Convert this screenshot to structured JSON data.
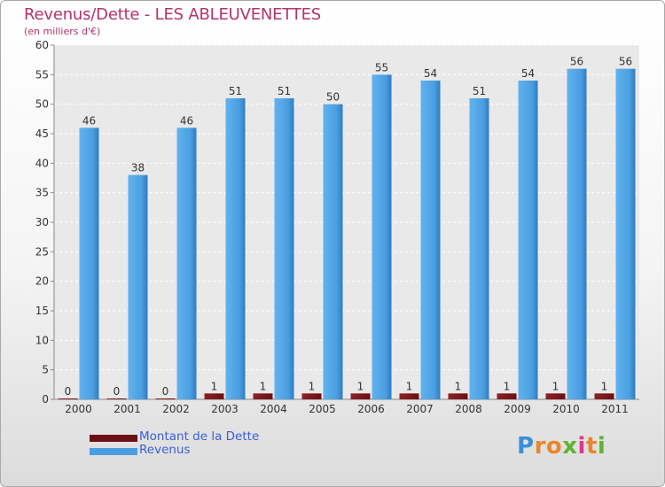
{
  "chart_data": {
    "type": "bar",
    "title": "Revenus/Dette - LES ABLEUVENETTES",
    "subtitle": "(en milliers d'€)",
    "categories": [
      "2000",
      "2001",
      "2002",
      "2003",
      "2004",
      "2005",
      "2006",
      "2007",
      "2008",
      "2009",
      "2010",
      "2011"
    ],
    "series": [
      {
        "name": "Montant de la Dette",
        "values": [
          0,
          0,
          0,
          1,
          1,
          1,
          1,
          1,
          1,
          1,
          1,
          1
        ],
        "color": "#6b0f12"
      },
      {
        "name": "Revenus",
        "values": [
          46,
          38,
          46,
          51,
          51,
          50,
          55,
          54,
          51,
          54,
          56,
          56
        ],
        "color": "#4a9ee0"
      }
    ],
    "ylim": [
      0,
      60
    ],
    "yticks": [
      0,
      5,
      10,
      15,
      20,
      25,
      30,
      35,
      40,
      45,
      50,
      55,
      60
    ],
    "grid": true,
    "legend_position": "bottom-left"
  },
  "brand": {
    "letters": [
      {
        "char": "P",
        "color": "#3a8fd8"
      },
      {
        "char": "r",
        "color": "#e8862a"
      },
      {
        "char": "o",
        "color": "#e8862a"
      },
      {
        "char": "x",
        "color": "#5cb531"
      },
      {
        "char": "i",
        "color": "#d63b8a"
      },
      {
        "char": "t",
        "color": "#e8862a"
      },
      {
        "char": "i",
        "color": "#5cb531"
      }
    ]
  }
}
